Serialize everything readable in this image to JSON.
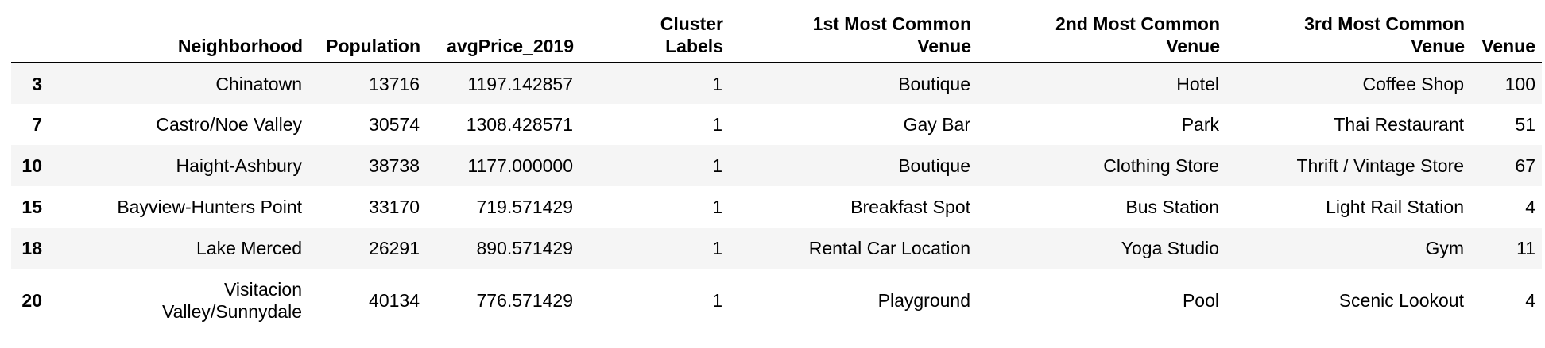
{
  "table": {
    "columns": [
      "",
      "Neighborhood",
      "Population",
      "avgPrice_2019",
      "Cluster Labels",
      "1st Most Common Venue",
      "2nd Most Common Venue",
      "3rd Most Common Venue",
      "Venue"
    ],
    "header_lines": {
      "cluster": [
        "Cluster",
        "Labels"
      ],
      "v1": [
        "1st Most Common",
        "Venue"
      ],
      "v2": [
        "2nd Most Common",
        "Venue"
      ],
      "v3": [
        "3rd Most Common",
        "Venue"
      ]
    },
    "rows": [
      {
        "index": "3",
        "neighborhood": [
          "Chinatown"
        ],
        "population": "13716",
        "avg_price": "1197.142857",
        "cluster": "1",
        "venue1": "Boutique",
        "venue2": "Hotel",
        "venue3": "Coffee Shop",
        "venue": "100"
      },
      {
        "index": "7",
        "neighborhood": [
          "Castro/Noe Valley"
        ],
        "population": "30574",
        "avg_price": "1308.428571",
        "cluster": "1",
        "venue1": "Gay Bar",
        "venue2": "Park",
        "venue3": "Thai Restaurant",
        "venue": "51"
      },
      {
        "index": "10",
        "neighborhood": [
          "Haight-Ashbury"
        ],
        "population": "38738",
        "avg_price": "1177.000000",
        "cluster": "1",
        "venue1": "Boutique",
        "venue2": "Clothing Store",
        "venue3": "Thrift / Vintage Store",
        "venue": "67"
      },
      {
        "index": "15",
        "neighborhood": [
          "Bayview-Hunters Point"
        ],
        "population": "33170",
        "avg_price": "719.571429",
        "cluster": "1",
        "venue1": "Breakfast Spot",
        "venue2": "Bus Station",
        "venue3": "Light Rail Station",
        "venue": "4"
      },
      {
        "index": "18",
        "neighborhood": [
          "Lake Merced"
        ],
        "population": "26291",
        "avg_price": "890.571429",
        "cluster": "1",
        "venue1": "Rental Car Location",
        "venue2": "Yoga Studio",
        "venue3": "Gym",
        "venue": "11"
      },
      {
        "index": "20",
        "neighborhood": [
          "Visitacion",
          "Valley/Sunnydale"
        ],
        "population": "40134",
        "avg_price": "776.571429",
        "cluster": "1",
        "venue1": "Playground",
        "venue2": "Pool",
        "venue3": "Scenic Lookout",
        "venue": "4"
      }
    ]
  }
}
